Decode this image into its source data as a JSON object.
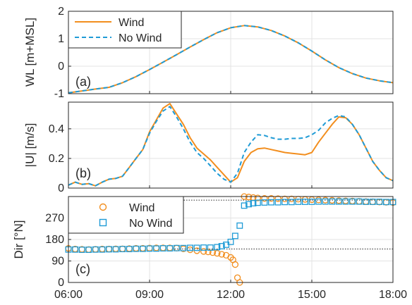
{
  "chart_data": [
    {
      "type": "line",
      "panel_label": "(a)",
      "ylabel": "WL [m+MSL]",
      "xlim": [
        "06:00",
        "18:00"
      ],
      "ylim": [
        -1,
        2
      ],
      "yticks": [
        "-1",
        "0",
        "1",
        "2"
      ],
      "grid": true,
      "legend": "top-left",
      "series": [
        {
          "name": "Wind",
          "style": "solid",
          "color": "#F28E1E",
          "x": [
            "06:00",
            "06:30",
            "07:00",
            "07:30",
            "08:00",
            "08:30",
            "09:00",
            "09:30",
            "10:00",
            "10:30",
            "11:00",
            "11:30",
            "12:00",
            "12:30",
            "13:00",
            "13:30",
            "14:00",
            "14:30",
            "15:00",
            "15:30",
            "16:00",
            "16:30",
            "17:00",
            "17:30",
            "18:00"
          ],
          "y": [
            -0.97,
            -0.9,
            -0.83,
            -0.77,
            -0.6,
            -0.38,
            -0.12,
            0.15,
            0.42,
            0.7,
            0.97,
            1.22,
            1.4,
            1.48,
            1.43,
            1.3,
            1.1,
            0.85,
            0.55,
            0.23,
            -0.05,
            -0.27,
            -0.43,
            -0.53,
            -0.6
          ]
        },
        {
          "name": "No Wind",
          "style": "dashed",
          "color": "#1F9BD6",
          "x": [
            "06:00",
            "06:30",
            "07:00",
            "07:30",
            "08:00",
            "08:30",
            "09:00",
            "09:30",
            "10:00",
            "10:30",
            "11:00",
            "11:30",
            "12:00",
            "12:30",
            "13:00",
            "13:30",
            "14:00",
            "14:30",
            "15:00",
            "15:30",
            "16:00",
            "16:30",
            "17:00",
            "17:30",
            "18:00"
          ],
          "y": [
            -0.97,
            -0.9,
            -0.83,
            -0.77,
            -0.6,
            -0.38,
            -0.12,
            0.15,
            0.42,
            0.7,
            0.97,
            1.22,
            1.4,
            1.48,
            1.43,
            1.3,
            1.1,
            0.85,
            0.55,
            0.23,
            -0.05,
            -0.27,
            -0.43,
            -0.53,
            -0.6
          ]
        }
      ]
    },
    {
      "type": "line",
      "panel_label": "(b)",
      "ylabel": "|U| [m/s]",
      "xlim": [
        "06:00",
        "18:00"
      ],
      "ylim": [
        0,
        0.58
      ],
      "yticks": [
        "0",
        "0.2",
        "0.4"
      ],
      "grid": true,
      "series": [
        {
          "name": "Wind",
          "style": "solid",
          "color": "#F28E1E",
          "x": [
            "06:00",
            "06:15",
            "06:30",
            "06:45",
            "07:00",
            "07:15",
            "07:30",
            "07:45",
            "08:00",
            "08:15",
            "08:30",
            "08:45",
            "09:00",
            "09:15",
            "09:30",
            "09:45",
            "10:00",
            "10:15",
            "10:30",
            "10:45",
            "11:00",
            "11:15",
            "11:30",
            "11:45",
            "12:00",
            "12:15",
            "12:30",
            "12:45",
            "13:00",
            "13:15",
            "13:30",
            "13:45",
            "14:00",
            "14:15",
            "14:30",
            "14:45",
            "15:00",
            "15:15",
            "15:30",
            "15:45",
            "16:00",
            "16:15",
            "16:30",
            "16:45",
            "17:00",
            "17:15",
            "17:30",
            "17:45",
            "18:00"
          ],
          "y": [
            0.02,
            0.04,
            0.025,
            0.03,
            0.015,
            0.04,
            0.06,
            0.065,
            0.08,
            0.14,
            0.2,
            0.26,
            0.38,
            0.46,
            0.54,
            0.57,
            0.5,
            0.43,
            0.34,
            0.27,
            0.23,
            0.19,
            0.14,
            0.09,
            0.04,
            0.07,
            0.18,
            0.24,
            0.265,
            0.27,
            0.26,
            0.25,
            0.24,
            0.235,
            0.23,
            0.225,
            0.24,
            0.31,
            0.37,
            0.43,
            0.48,
            0.475,
            0.43,
            0.36,
            0.27,
            0.18,
            0.12,
            0.07,
            0.05
          ]
        },
        {
          "name": "No Wind",
          "style": "dashed",
          "color": "#1F9BD6",
          "x": [
            "06:00",
            "06:15",
            "06:30",
            "06:45",
            "07:00",
            "07:15",
            "07:30",
            "07:45",
            "08:00",
            "08:15",
            "08:30",
            "08:45",
            "09:00",
            "09:15",
            "09:30",
            "09:45",
            "10:00",
            "10:15",
            "10:30",
            "10:45",
            "11:00",
            "11:15",
            "11:30",
            "11:45",
            "12:00",
            "12:15",
            "12:30",
            "12:45",
            "13:00",
            "13:15",
            "13:30",
            "13:45",
            "14:00",
            "14:15",
            "14:30",
            "14:45",
            "15:00",
            "15:15",
            "15:30",
            "15:45",
            "16:00",
            "16:15",
            "16:30",
            "16:45",
            "17:00",
            "17:15",
            "17:30",
            "17:45",
            "18:00"
          ],
          "y": [
            0.02,
            0.04,
            0.025,
            0.03,
            0.015,
            0.04,
            0.06,
            0.065,
            0.08,
            0.14,
            0.2,
            0.26,
            0.37,
            0.45,
            0.52,
            0.55,
            0.48,
            0.4,
            0.31,
            0.24,
            0.2,
            0.15,
            0.1,
            0.06,
            0.04,
            0.1,
            0.24,
            0.31,
            0.36,
            0.355,
            0.34,
            0.33,
            0.33,
            0.335,
            0.335,
            0.34,
            0.36,
            0.39,
            0.44,
            0.47,
            0.49,
            0.48,
            0.43,
            0.36,
            0.27,
            0.18,
            0.12,
            0.07,
            0.05
          ]
        }
      ]
    },
    {
      "type": "scatter",
      "panel_label": "(c)",
      "ylabel": "Dir [°N]",
      "xlabel": "",
      "xlim": [
        "06:00",
        "18:00"
      ],
      "ylim": [
        0,
        360
      ],
      "yticks": [
        "0",
        "90",
        "180",
        "270"
      ],
      "xticks": [
        "06:00",
        "09:00",
        "12:00",
        "15:00",
        "18:00"
      ],
      "grid": true,
      "legend": "top-left",
      "reference_lines": [
        {
          "style": "dotted",
          "y": 345,
          "x_start": "08:10",
          "x_end": "18:00"
        },
        {
          "style": "dotted",
          "y": 140,
          "x_start": "09:50",
          "x_end": "18:00"
        }
      ],
      "series": [
        {
          "name": "Wind",
          "marker": "circle",
          "color": "#F28E1E",
          "x": [
            "06:00",
            "06:15",
            "06:30",
            "06:45",
            "07:00",
            "07:15",
            "07:30",
            "07:45",
            "08:00",
            "08:15",
            "08:30",
            "08:45",
            "09:00",
            "09:15",
            "09:30",
            "09:45",
            "10:00",
            "10:15",
            "10:30",
            "10:45",
            "11:00",
            "11:10",
            "11:20",
            "11:30",
            "11:40",
            "11:50",
            "12:00",
            "12:05",
            "12:10",
            "12:15",
            "12:20",
            "12:30",
            "12:40",
            "12:50",
            "13:00",
            "13:15",
            "13:30",
            "13:45",
            "14:00",
            "14:15",
            "14:30",
            "14:45",
            "15:00",
            "15:15",
            "15:30",
            "15:45",
            "16:00",
            "16:15",
            "16:30",
            "16:45",
            "17:00",
            "17:15",
            "17:30",
            "17:45",
            "18:00"
          ],
          "y": [
            143,
            140,
            139,
            138,
            139,
            140,
            140,
            141,
            141,
            142,
            143,
            143,
            144,
            145,
            145,
            145,
            144,
            141,
            137,
            133,
            130,
            128,
            125,
            122,
            118,
            114,
            105,
            95,
            75,
            20,
            0,
            360,
            358,
            356,
            354,
            352,
            352,
            351,
            350,
            350,
            349,
            348,
            347,
            346,
            345,
            344,
            343,
            342,
            341,
            340,
            339,
            338,
            337,
            336,
            335
          ]
        },
        {
          "name": "No Wind",
          "marker": "square",
          "color": "#1F9BD6",
          "x": [
            "06:00",
            "06:15",
            "06:30",
            "06:45",
            "07:00",
            "07:15",
            "07:30",
            "07:45",
            "08:00",
            "08:15",
            "08:30",
            "08:45",
            "09:00",
            "09:15",
            "09:30",
            "09:45",
            "10:00",
            "10:15",
            "10:30",
            "10:45",
            "11:00",
            "11:15",
            "11:30",
            "11:40",
            "11:50",
            "12:00",
            "12:10",
            "12:20",
            "12:30",
            "12:40",
            "12:50",
            "13:00",
            "13:15",
            "13:30",
            "13:45",
            "14:00",
            "14:15",
            "14:30",
            "14:45",
            "15:00",
            "15:15",
            "15:30",
            "15:45",
            "16:00",
            "16:15",
            "16:30",
            "16:45",
            "17:00",
            "17:15",
            "17:30",
            "17:45",
            "18:00"
          ],
          "y": [
            138,
            138,
            137,
            137,
            138,
            138,
            139,
            139,
            140,
            140,
            141,
            141,
            142,
            142,
            143,
            143,
            144,
            144,
            145,
            145,
            146,
            146,
            148,
            152,
            158,
            170,
            195,
            238,
            322,
            328,
            332,
            334,
            335,
            336,
            336,
            337,
            337,
            338,
            338,
            338,
            339,
            339,
            339,
            339,
            339,
            339,
            339,
            338,
            338,
            338,
            337,
            337
          ]
        }
      ]
    }
  ]
}
